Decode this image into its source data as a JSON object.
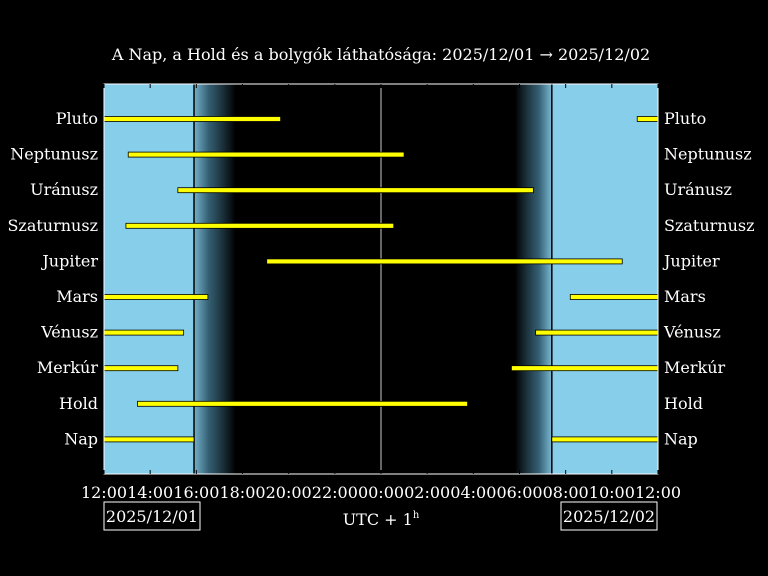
{
  "chart_data": {
    "type": "bar",
    "title": "A Nap, a Hold és a bolygók láthatósága: 2025/12/01 → 2025/12/02",
    "xlabel_main": "UTC + 1",
    "xlabel_sup": "h",
    "start_date_label": "2025/12/01",
    "end_date_label": "2025/12/02",
    "x_range_hours": [
      12,
      36
    ],
    "x_ticks": [
      {
        "h": 12,
        "label": "12:00"
      },
      {
        "h": 14,
        "label": "14:00"
      },
      {
        "h": 16,
        "label": "16:00"
      },
      {
        "h": 18,
        "label": "18:00"
      },
      {
        "h": 20,
        "label": "20:00"
      },
      {
        "h": 22,
        "label": "22:00"
      },
      {
        "h": 24,
        "label": "00:00"
      },
      {
        "h": 26,
        "label": "02:00"
      },
      {
        "h": 28,
        "label": "04:00"
      },
      {
        "h": 30,
        "label": "06:00"
      },
      {
        "h": 32,
        "label": "08:00"
      },
      {
        "h": 34,
        "label": "10:00"
      },
      {
        "h": 36,
        "label": "12:00"
      }
    ],
    "midnight_h": 24,
    "sunset_h": 15.9,
    "dusk_end_h": 17.7,
    "dawn_start_h": 29.8,
    "sunrise_h": 31.4,
    "colors": {
      "day": "#87CEEB",
      "night": "#000000",
      "bar": "#FFFF00",
      "bar_edge": "#000000",
      "axis": "#FFFFFF"
    },
    "categories": [
      "Pluto",
      "Neptunusz",
      "Uránusz",
      "Szaturnusz",
      "Jupiter",
      "Mars",
      "Vénusz",
      "Merkúr",
      "Hold",
      "Nap"
    ],
    "series": [
      {
        "name": "Pluto",
        "intervals": [
          [
            12.0,
            19.65
          ],
          [
            35.1,
            36.0
          ]
        ]
      },
      {
        "name": "Neptunusz",
        "intervals": [
          [
            13.05,
            25.0
          ]
        ]
      },
      {
        "name": "Uránusz",
        "intervals": [
          [
            15.2,
            30.6
          ]
        ]
      },
      {
        "name": "Szaturnusz",
        "intervals": [
          [
            12.95,
            24.55
          ]
        ]
      },
      {
        "name": "Jupiter",
        "intervals": [
          [
            19.05,
            34.45
          ]
        ]
      },
      {
        "name": "Mars",
        "intervals": [
          [
            12.0,
            16.5
          ],
          [
            32.2,
            36.0
          ]
        ]
      },
      {
        "name": "Vénusz",
        "intervals": [
          [
            12.0,
            15.45
          ],
          [
            30.7,
            36.0
          ]
        ]
      },
      {
        "name": "Merkúr",
        "intervals": [
          [
            12.0,
            15.2
          ],
          [
            29.65,
            36.0
          ]
        ]
      },
      {
        "name": "Hold",
        "intervals": [
          [
            13.45,
            27.75
          ]
        ]
      },
      {
        "name": "Nap",
        "intervals": [
          [
            12.0,
            15.9
          ],
          [
            31.4,
            36.0
          ]
        ]
      }
    ]
  }
}
